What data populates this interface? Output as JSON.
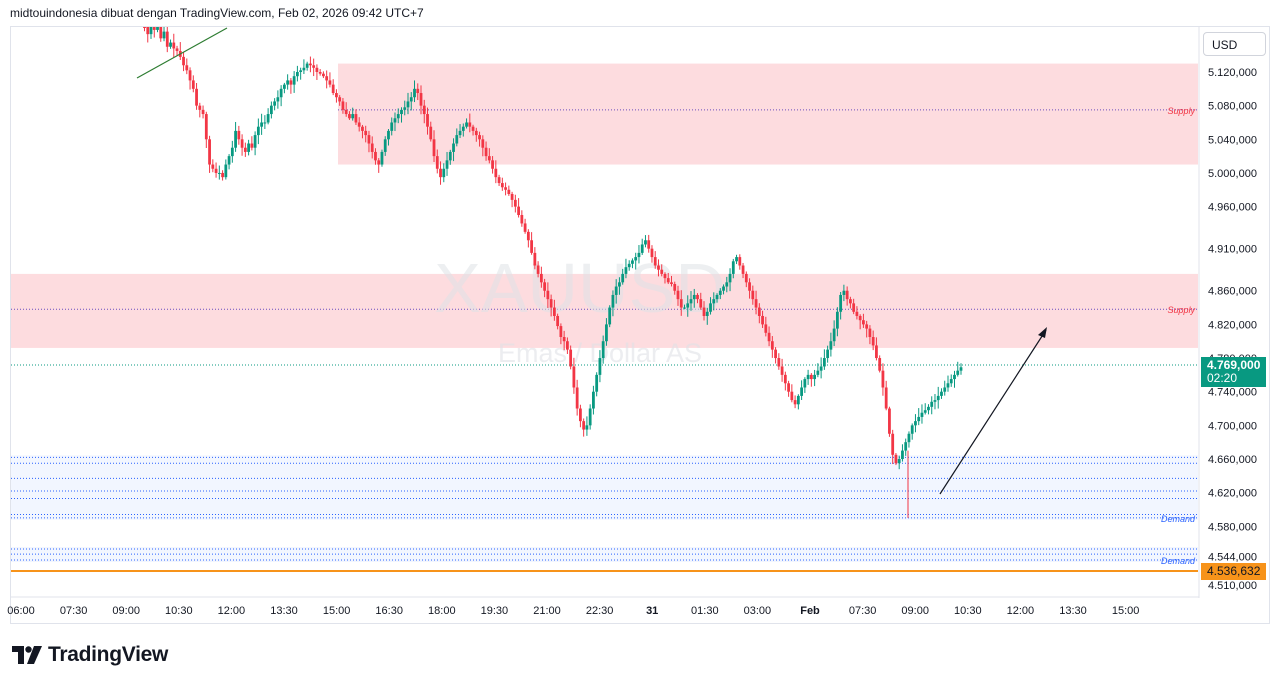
{
  "header": {
    "attribution": "midtouindonesia dibuat dengan TradingView.com, Feb 02, 2026 09:42 UTC+7"
  },
  "watermark": {
    "symbol": "XAUUSD",
    "description": "Emas / Dollar AS"
  },
  "currency": "USD",
  "last_price": {
    "value": "4.769,000",
    "countdown": "02:20",
    "color": "#089981"
  },
  "orange_level": {
    "value": "4.536,632",
    "color": "#f7931a"
  },
  "zones": {
    "supply_upper": {
      "label": "Supply",
      "top": 5130,
      "bottom": 5010,
      "mid": 5075
    },
    "supply_lower": {
      "label": "Supply",
      "top": 4880,
      "bottom": 4792,
      "mid": 4838
    },
    "demand_upper": {
      "label": "Demand",
      "levels": [
        4662,
        4655,
        4637,
        4622,
        4613,
        4594,
        4590
      ]
    },
    "demand_lower": {
      "label": "Demand",
      "levels": [
        4553,
        4547,
        4540
      ]
    }
  },
  "brand": {
    "logo_text": "TradingView"
  },
  "chart_data": {
    "type": "candlestick",
    "symbol": "XAUUSD",
    "y_axis": {
      "range": [
        4505,
        5150
      ],
      "ticks": [
        5120,
        5080,
        5040,
        5000,
        4960,
        4910,
        4860,
        4820,
        4780,
        4740,
        4700,
        4660,
        4620,
        4580,
        4544,
        4510
      ],
      "tick_labels": [
        "5.120,000",
        "5.080,000",
        "5.040,000",
        "5.000,000",
        "4.960,000",
        "4.910,000",
        "4.860,000",
        "4.820,000",
        "4.780,000",
        "4.740,000",
        "4.700,000",
        "4.660,000",
        "4.620,000",
        "4.580,000",
        "4.544,000",
        "4.510,000"
      ]
    },
    "x_axis": {
      "tick_labels": [
        "06:00",
        "07:30",
        "09:00",
        "10:30",
        "12:00",
        "13:30",
        "15:00",
        "16:30",
        "18:00",
        "19:30",
        "21:00",
        "22:30",
        "31",
        "01:30",
        "03:00",
        "Feb",
        "07:30",
        "09:00",
        "10:30",
        "12:00",
        "13:30",
        "15:00"
      ]
    },
    "path_values": [
      5185,
      5190,
      5175,
      5165,
      5180,
      5170,
      5175,
      5160,
      5168,
      5150,
      5155,
      5148,
      5145,
      5138,
      5128,
      5122,
      5110,
      5100,
      5080,
      5075,
      5070,
      5040,
      5010,
      5005,
      5000,
      5000,
      4995,
      5010,
      5020,
      5030,
      5050,
      5040,
      5030,
      5025,
      5035,
      5030,
      5045,
      5055,
      5060,
      5060,
      5070,
      5080,
      5085,
      5090,
      5100,
      5105,
      5110,
      5105,
      5115,
      5120,
      5122,
      5125,
      5130,
      5128,
      5125,
      5120,
      5118,
      5115,
      5110,
      5105,
      5095,
      5090,
      5085,
      5075,
      5070,
      5065,
      5070,
      5060,
      5055,
      5050,
      5045,
      5035,
      5025,
      5015,
      5010,
      5025,
      5040,
      5050,
      5060,
      5065,
      5070,
      5075,
      5078,
      5085,
      5090,
      5100,
      5095,
      5080,
      5070,
      5055,
      5040,
      5020,
      5005,
      4995,
      5005,
      5015,
      5025,
      5035,
      5045,
      5050,
      5055,
      5060,
      5055,
      5050,
      5045,
      5040,
      5030,
      5020,
      5015,
      5005,
      4995,
      4988,
      4983,
      4980,
      4975,
      4968,
      4960,
      4950,
      4940,
      4930,
      4920,
      4905,
      4890,
      4880,
      4870,
      4860,
      4850,
      4840,
      4830,
      4818,
      4805,
      4800,
      4790,
      4770,
      4745,
      4720,
      4705,
      4695,
      4700,
      4720,
      4740,
      4760,
      4780,
      4800,
      4820,
      4840,
      4855,
      4865,
      4870,
      4880,
      4888,
      4892,
      4896,
      4900,
      4905,
      4915,
      4920,
      4910,
      4900,
      4890,
      4885,
      4880,
      4875,
      4870,
      4868,
      4860,
      4850,
      4840,
      4840,
      4845,
      4850,
      4855,
      4850,
      4840,
      4830,
      4835,
      4845,
      4850,
      4855,
      4860,
      4865,
      4870,
      4880,
      4895,
      4900,
      4890,
      4880,
      4870,
      4860,
      4850,
      4840,
      4830,
      4820,
      4810,
      4800,
      4790,
      4780,
      4770,
      4760,
      4750,
      4740,
      4730,
      4725,
      4735,
      4745,
      4755,
      4760,
      4755,
      4760,
      4765,
      4770,
      4780,
      4790,
      4800,
      4815,
      4835,
      4855,
      4860,
      4850,
      4845,
      4835,
      4830,
      4825,
      4820,
      4815,
      4805,
      4795,
      4780,
      4765,
      4745,
      4720,
      4690,
      4665,
      4655,
      4660,
      4670,
      4680,
      4690,
      4700,
      4705,
      4710,
      4715,
      4718,
      4722,
      4728,
      4730,
      4735,
      4740,
      4745,
      4750,
      4755,
      4760,
      4765,
      4769
    ]
  }
}
